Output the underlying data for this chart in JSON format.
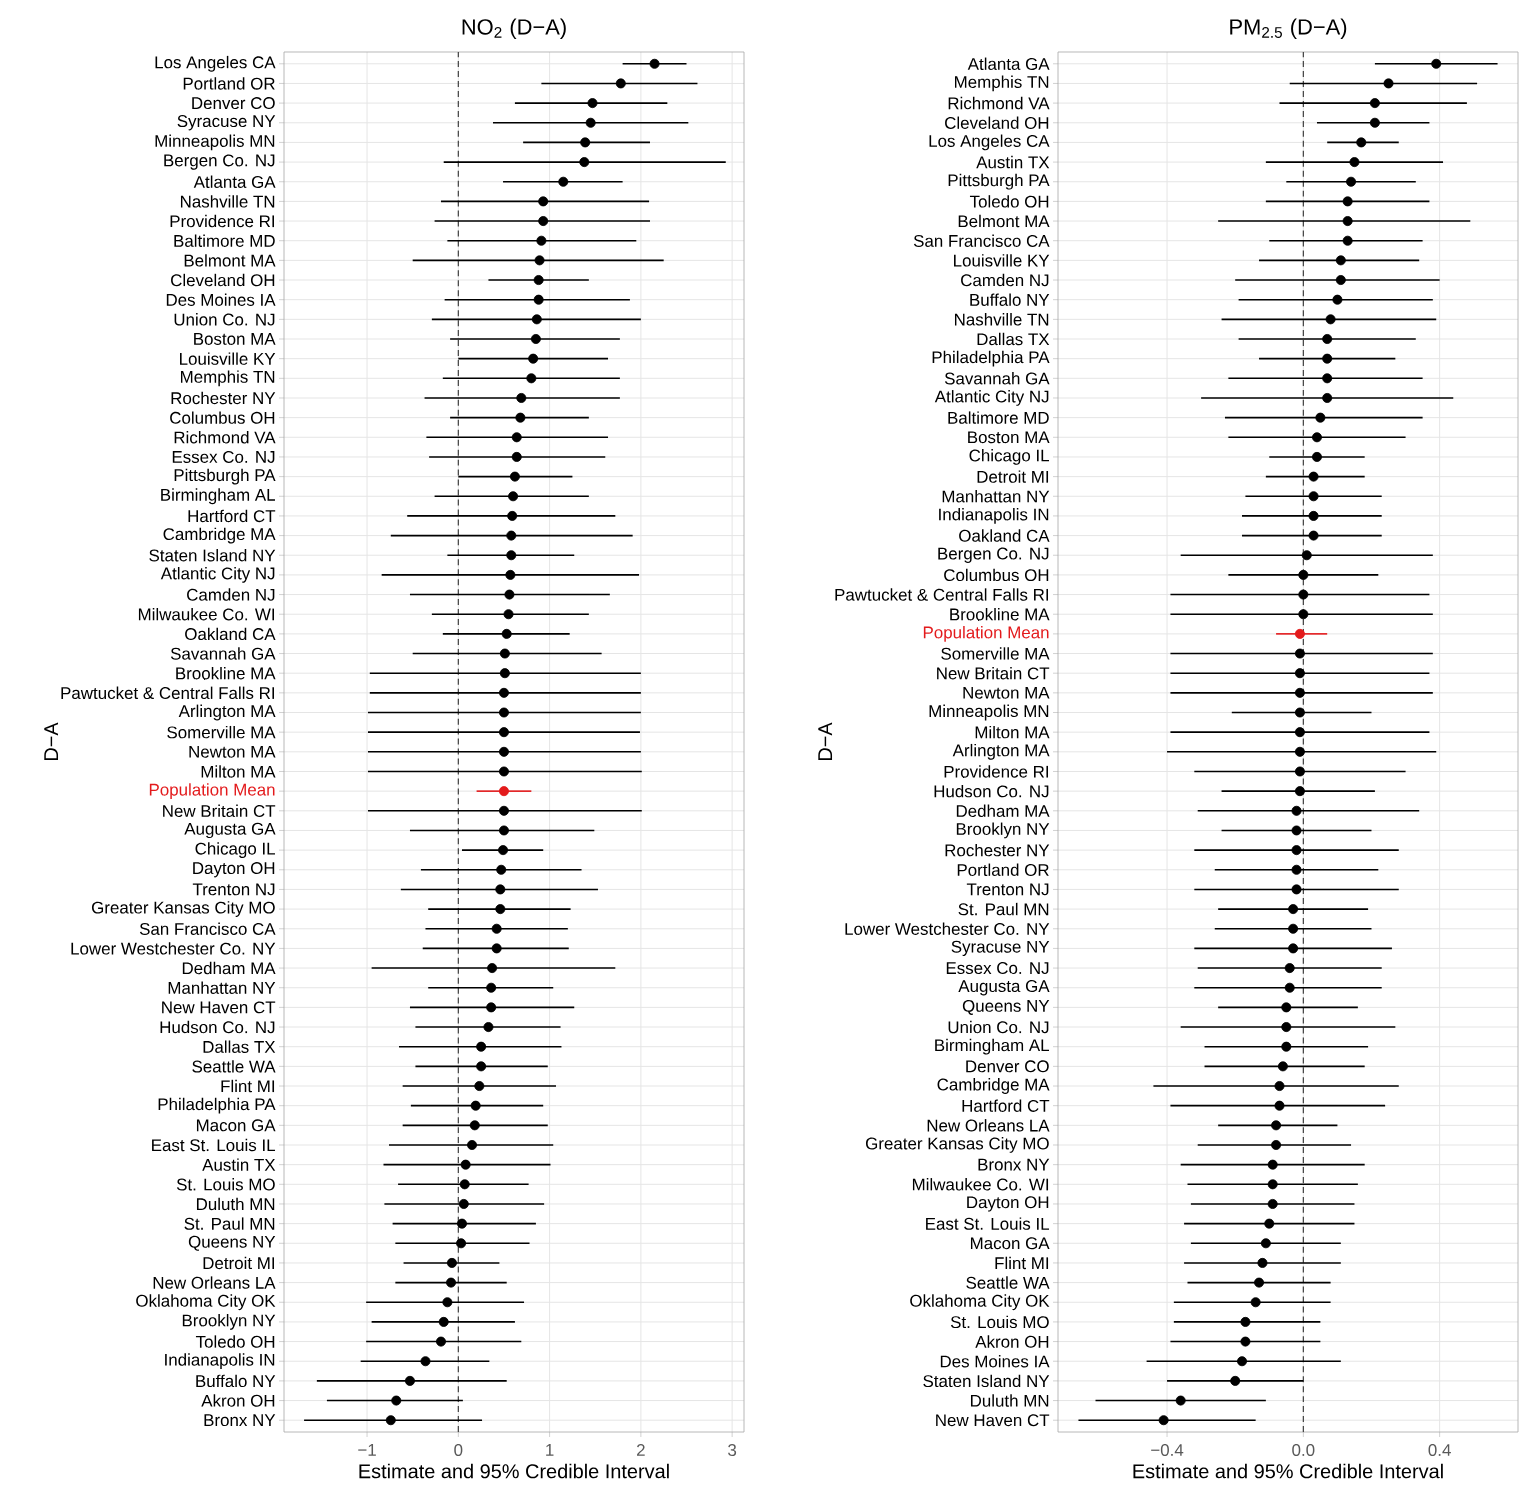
{
  "chart_data": [
    {
      "type": "scatter",
      "orientation": "horizontal",
      "title": "NO$_{2}$ (D−A)",
      "xlabel": "Estimate and 95% Credible Interval",
      "ylabel": "D−A",
      "marker": "circle",
      "grid": true,
      "categories": [
        "Los Angeles CA",
        "Portland OR",
        "Denver CO",
        "Syracuse NY",
        "Minneapolis MN",
        "Bergen Co. NJ",
        "Atlanta GA",
        "Nashville TN",
        "Providence RI",
        "Baltimore MD",
        "Belmont MA",
        "Cleveland OH",
        "Des Moines IA",
        "Union Co. NJ",
        "Boston MA",
        "Louisville KY",
        "Memphis TN",
        "Rochester NY",
        "Columbus OH",
        "Richmond VA",
        "Essex Co. NJ",
        "Pittsburgh PA",
        "Birmingham AL",
        "Hartford CT",
        "Cambridge MA",
        "Staten Island NY",
        "Atlantic City NJ",
        "Camden NJ",
        "Milwaukee Co. WI",
        "Oakland CA",
        "Savannah GA",
        "Brookline MA",
        "Pawtucket & Central Falls RI",
        "Arlington MA",
        "Somerville MA",
        "Newton MA",
        "Milton MA",
        "Population Mean",
        "New Britain CT",
        "Augusta GA",
        "Chicago IL",
        "Dayton OH",
        "Trenton NJ",
        "Greater Kansas City MO",
        "San Francisco CA",
        "Lower Westchester Co. NY",
        "Dedham MA",
        "Manhattan NY",
        "New Haven CT",
        "Hudson Co. NJ",
        "Dallas TX",
        "Seattle WA",
        "Flint MI",
        "Philadelphia PA",
        "Macon GA",
        "East St. Louis IL",
        "Austin TX",
        "St. Louis MO",
        "Duluth MN",
        "St. Paul MN",
        "Queens NY",
        "Detroit MI",
        "New Orleans LA",
        "Oklahoma City OK",
        "Brooklyn NY",
        "Toledo OH",
        "Indianapolis IN",
        "Buffalo NY",
        "Akron OH",
        "Bronx NY"
      ],
      "values": [
        2.15,
        1.78,
        1.47,
        1.45,
        1.39,
        1.38,
        1.15,
        0.93,
        0.93,
        0.91,
        0.89,
        0.88,
        0.88,
        0.86,
        0.85,
        0.82,
        0.8,
        0.69,
        0.68,
        0.64,
        0.64,
        0.62,
        0.6,
        0.59,
        0.58,
        0.58,
        0.57,
        0.56,
        0.55,
        0.53,
        0.51,
        0.51,
        0.5,
        0.5,
        0.5,
        0.5,
        0.5,
        0.5,
        0.5,
        0.5,
        0.49,
        0.47,
        0.46,
        0.46,
        0.42,
        0.42,
        0.37,
        0.36,
        0.36,
        0.33,
        0.25,
        0.25,
        0.23,
        0.19,
        0.18,
        0.15,
        0.08,
        0.07,
        0.06,
        0.04,
        0.03,
        -0.07,
        -0.08,
        -0.12,
        -0.16,
        -0.19,
        -0.36,
        -0.53,
        -0.68,
        -0.74
      ],
      "errors": [
        [
          1.8,
          2.5
        ],
        [
          0.91,
          2.62
        ],
        [
          0.62,
          2.29
        ],
        [
          0.38,
          2.52
        ],
        [
          0.71,
          2.1
        ],
        [
          -0.16,
          2.93
        ],
        [
          0.49,
          1.8
        ],
        [
          -0.19,
          2.09
        ],
        [
          -0.26,
          2.1
        ],
        [
          -0.12,
          1.95
        ],
        [
          -0.5,
          2.25
        ],
        [
          0.33,
          1.43
        ],
        [
          -0.15,
          1.88
        ],
        [
          -0.29,
          2.0
        ],
        [
          -0.09,
          1.77
        ],
        [
          0.0,
          1.64
        ],
        [
          -0.17,
          1.77
        ],
        [
          -0.37,
          1.77
        ],
        [
          -0.09,
          1.43
        ],
        [
          -0.35,
          1.64
        ],
        [
          -0.32,
          1.61
        ],
        [
          0.0,
          1.25
        ],
        [
          -0.26,
          1.43
        ],
        [
          -0.56,
          1.72
        ],
        [
          -0.74,
          1.91
        ],
        [
          -0.12,
          1.27
        ],
        [
          -0.84,
          1.98
        ],
        [
          -0.53,
          1.66
        ],
        [
          -0.29,
          1.43
        ],
        [
          -0.17,
          1.22
        ],
        [
          -0.5,
          1.57
        ],
        [
          -0.97,
          2.0
        ],
        [
          -0.97,
          2.0
        ],
        [
          -0.99,
          2.0
        ],
        [
          -0.99,
          1.99
        ],
        [
          -0.99,
          2.0
        ],
        [
          -0.99,
          2.01
        ],
        [
          0.2,
          0.8
        ],
        [
          -0.99,
          2.01
        ],
        [
          -0.53,
          1.49
        ],
        [
          0.04,
          0.93
        ],
        [
          -0.41,
          1.35
        ],
        [
          -0.63,
          1.53
        ],
        [
          -0.33,
          1.23
        ],
        [
          -0.36,
          1.2
        ],
        [
          -0.39,
          1.21
        ],
        [
          -0.95,
          1.72
        ],
        [
          -0.33,
          1.04
        ],
        [
          -0.53,
          1.27
        ],
        [
          -0.47,
          1.12
        ],
        [
          -0.65,
          1.13
        ],
        [
          -0.47,
          0.98
        ],
        [
          -0.61,
          1.07
        ],
        [
          -0.52,
          0.93
        ],
        [
          -0.61,
          0.98
        ],
        [
          -0.76,
          1.04
        ],
        [
          -0.82,
          1.01
        ],
        [
          -0.66,
          0.77
        ],
        [
          -0.81,
          0.94
        ],
        [
          -0.72,
          0.85
        ],
        [
          -0.69,
          0.78
        ],
        [
          -0.6,
          0.45
        ],
        [
          -0.69,
          0.53
        ],
        [
          -1.01,
          0.72
        ],
        [
          -0.95,
          0.62
        ],
        [
          -1.01,
          0.69
        ],
        [
          -1.07,
          0.34
        ],
        [
          -1.55,
          0.53
        ],
        [
          -1.44,
          0.05
        ],
        [
          -1.69,
          0.26
        ]
      ],
      "colors": [
        "#000000",
        "#000000",
        "#000000",
        "#000000",
        "#000000",
        "#000000",
        "#000000",
        "#000000",
        "#000000",
        "#000000",
        "#000000",
        "#000000",
        "#000000",
        "#000000",
        "#000000",
        "#000000",
        "#000000",
        "#000000",
        "#000000",
        "#000000",
        "#000000",
        "#000000",
        "#000000",
        "#000000",
        "#000000",
        "#000000",
        "#000000",
        "#000000",
        "#000000",
        "#000000",
        "#000000",
        "#000000",
        "#000000",
        "#000000",
        "#000000",
        "#000000",
        "#000000",
        "#e31a1c",
        "#000000",
        "#000000",
        "#000000",
        "#000000",
        "#000000",
        "#000000",
        "#000000",
        "#000000",
        "#000000",
        "#000000",
        "#000000",
        "#000000",
        "#000000",
        "#000000",
        "#000000",
        "#000000",
        "#000000",
        "#000000",
        "#000000",
        "#000000",
        "#000000",
        "#000000",
        "#000000",
        "#000000",
        "#000000",
        "#000000",
        "#000000",
        "#000000",
        "#000000",
        "#000000",
        "#000000",
        "#000000"
      ],
      "xlim": [
        -1.91,
        3.13
      ],
      "xticks": [
        {
          "value": -1,
          "label": "−1"
        },
        {
          "value": 0,
          "label": "0"
        },
        {
          "value": 1,
          "label": "1"
        },
        {
          "value": 2,
          "label": "2"
        },
        {
          "value": 3,
          "label": "3"
        }
      ],
      "ref_lines": [
        {
          "axis": "x",
          "value": 0,
          "line_style": "dashed"
        }
      ]
    },
    {
      "type": "scatter",
      "orientation": "horizontal",
      "title": "PM$_{2.5}$ (D−A)",
      "xlabel": "Estimate and 95% Credible Interval",
      "ylabel": "D−A",
      "marker": "circle",
      "grid": true,
      "categories": [
        "Atlanta GA",
        "Memphis TN",
        "Richmond VA",
        "Cleveland OH",
        "Los Angeles CA",
        "Austin TX",
        "Pittsburgh PA",
        "Toledo OH",
        "Belmont MA",
        "San Francisco CA",
        "Louisville KY",
        "Camden NJ",
        "Buffalo NY",
        "Nashville TN",
        "Dallas TX",
        "Philadelphia PA",
        "Savannah GA",
        "Atlantic City NJ",
        "Baltimore MD",
        "Boston MA",
        "Chicago IL",
        "Detroit MI",
        "Manhattan NY",
        "Indianapolis IN",
        "Oakland CA",
        "Bergen Co. NJ",
        "Columbus OH",
        "Pawtucket & Central Falls RI",
        "Brookline MA",
        "Population Mean",
        "Somerville MA",
        "New Britain CT",
        "Newton MA",
        "Minneapolis MN",
        "Milton MA",
        "Arlington MA",
        "Providence RI",
        "Hudson Co. NJ",
        "Dedham MA",
        "Brooklyn NY",
        "Rochester NY",
        "Portland OR",
        "Trenton NJ",
        "St. Paul MN",
        "Lower Westchester Co. NY",
        "Syracuse NY",
        "Essex Co. NJ",
        "Augusta GA",
        "Queens NY",
        "Union Co. NJ",
        "Birmingham AL",
        "Denver CO",
        "Cambridge MA",
        "Hartford CT",
        "New Orleans LA",
        "Greater Kansas City MO",
        "Bronx NY",
        "Milwaukee Co. WI",
        "Dayton OH",
        "East St. Louis IL",
        "Macon GA",
        "Flint MI",
        "Seattle WA",
        "Oklahoma City OK",
        "St. Louis MO",
        "Akron OH",
        "Des Moines IA",
        "Staten Island NY",
        "Duluth MN",
        "New Haven CT"
      ],
      "values": [
        0.39,
        0.25,
        0.21,
        0.21,
        0.17,
        0.15,
        0.14,
        0.13,
        0.13,
        0.13,
        0.11,
        0.11,
        0.1,
        0.08,
        0.07,
        0.07,
        0.07,
        0.07,
        0.05,
        0.04,
        0.04,
        0.03,
        0.03,
        0.03,
        0.03,
        0.01,
        0.0,
        0.0,
        0.0,
        -0.01,
        -0.01,
        -0.01,
        -0.01,
        -0.01,
        -0.01,
        -0.01,
        -0.01,
        -0.01,
        -0.02,
        -0.02,
        -0.02,
        -0.02,
        -0.02,
        -0.03,
        -0.03,
        -0.03,
        -0.04,
        -0.04,
        -0.05,
        -0.05,
        -0.05,
        -0.06,
        -0.07,
        -0.07,
        -0.08,
        -0.08,
        -0.09,
        -0.09,
        -0.09,
        -0.1,
        -0.11,
        -0.12,
        -0.13,
        -0.14,
        -0.17,
        -0.17,
        -0.18,
        -0.2,
        -0.36,
        -0.41
      ],
      "errors": [
        [
          0.21,
          0.57
        ],
        [
          -0.04,
          0.51
        ],
        [
          -0.07,
          0.48
        ],
        [
          0.04,
          0.37
        ],
        [
          0.07,
          0.28
        ],
        [
          -0.11,
          0.41
        ],
        [
          -0.05,
          0.33
        ],
        [
          -0.11,
          0.37
        ],
        [
          -0.25,
          0.49
        ],
        [
          -0.1,
          0.35
        ],
        [
          -0.13,
          0.34
        ],
        [
          -0.2,
          0.4
        ],
        [
          -0.19,
          0.38
        ],
        [
          -0.24,
          0.39
        ],
        [
          -0.19,
          0.33
        ],
        [
          -0.13,
          0.27
        ],
        [
          -0.22,
          0.35
        ],
        [
          -0.3,
          0.44
        ],
        [
          -0.23,
          0.35
        ],
        [
          -0.22,
          0.3
        ],
        [
          -0.1,
          0.18
        ],
        [
          -0.11,
          0.18
        ],
        [
          -0.17,
          0.23
        ],
        [
          -0.18,
          0.23
        ],
        [
          -0.18,
          0.23
        ],
        [
          -0.36,
          0.38
        ],
        [
          -0.22,
          0.22
        ],
        [
          -0.39,
          0.37
        ],
        [
          -0.39,
          0.38
        ],
        [
          -0.08,
          0.07
        ],
        [
          -0.39,
          0.38
        ],
        [
          -0.39,
          0.37
        ],
        [
          -0.39,
          0.38
        ],
        [
          -0.21,
          0.2
        ],
        [
          -0.39,
          0.37
        ],
        [
          -0.4,
          0.39
        ],
        [
          -0.32,
          0.3
        ],
        [
          -0.24,
          0.21
        ],
        [
          -0.31,
          0.34
        ],
        [
          -0.24,
          0.2
        ],
        [
          -0.32,
          0.28
        ],
        [
          -0.26,
          0.22
        ],
        [
          -0.32,
          0.28
        ],
        [
          -0.25,
          0.19
        ],
        [
          -0.26,
          0.2
        ],
        [
          -0.32,
          0.26
        ],
        [
          -0.31,
          0.23
        ],
        [
          -0.32,
          0.23
        ],
        [
          -0.25,
          0.16
        ],
        [
          -0.36,
          0.27
        ],
        [
          -0.29,
          0.19
        ],
        [
          -0.29,
          0.18
        ],
        [
          -0.44,
          0.28
        ],
        [
          -0.39,
          0.24
        ],
        [
          -0.25,
          0.1
        ],
        [
          -0.31,
          0.14
        ],
        [
          -0.36,
          0.18
        ],
        [
          -0.34,
          0.16
        ],
        [
          -0.33,
          0.15
        ],
        [
          -0.35,
          0.15
        ],
        [
          -0.33,
          0.11
        ],
        [
          -0.35,
          0.11
        ],
        [
          -0.34,
          0.08
        ],
        [
          -0.38,
          0.08
        ],
        [
          -0.38,
          0.05
        ],
        [
          -0.39,
          0.05
        ],
        [
          -0.46,
          0.11
        ],
        [
          -0.4,
          0.0
        ],
        [
          -0.61,
          -0.11
        ],
        [
          -0.66,
          -0.14
        ]
      ],
      "colors": [
        "#000000",
        "#000000",
        "#000000",
        "#000000",
        "#000000",
        "#000000",
        "#000000",
        "#000000",
        "#000000",
        "#000000",
        "#000000",
        "#000000",
        "#000000",
        "#000000",
        "#000000",
        "#000000",
        "#000000",
        "#000000",
        "#000000",
        "#000000",
        "#000000",
        "#000000",
        "#000000",
        "#000000",
        "#000000",
        "#000000",
        "#000000",
        "#000000",
        "#000000",
        "#e31a1c",
        "#000000",
        "#000000",
        "#000000",
        "#000000",
        "#000000",
        "#000000",
        "#000000",
        "#000000",
        "#000000",
        "#000000",
        "#000000",
        "#000000",
        "#000000",
        "#000000",
        "#000000",
        "#000000",
        "#000000",
        "#000000",
        "#000000",
        "#000000",
        "#000000",
        "#000000",
        "#000000",
        "#000000",
        "#000000",
        "#000000",
        "#000000",
        "#000000",
        "#000000",
        "#000000",
        "#000000",
        "#000000",
        "#000000",
        "#000000",
        "#000000",
        "#000000",
        "#000000",
        "#000000",
        "#000000",
        "#000000"
      ],
      "xlim": [
        -0.72,
        0.63
      ],
      "xticks": [
        {
          "value": -0.4,
          "label": "−0.4"
        },
        {
          "value": 0,
          "label": "0.0"
        },
        {
          "value": 0.4,
          "label": "0.4"
        }
      ],
      "ref_lines": [
        {
          "axis": "x",
          "value": 0,
          "line_style": "dashed"
        }
      ]
    }
  ]
}
